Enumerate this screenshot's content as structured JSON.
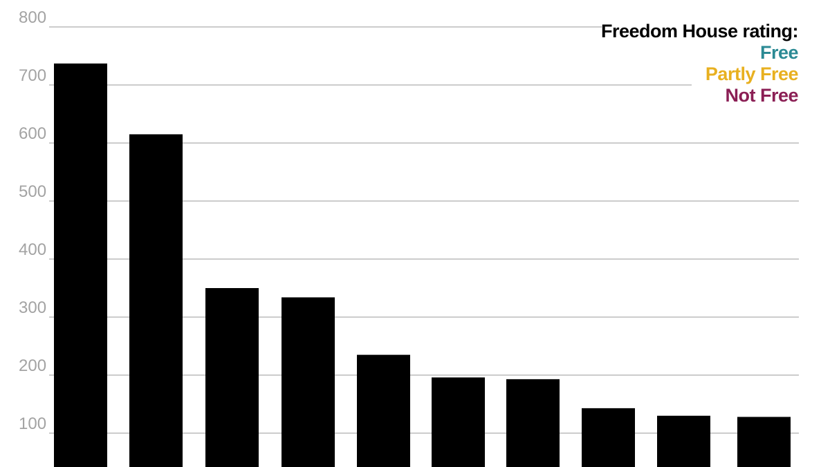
{
  "chart_data": {
    "type": "bar",
    "title": "",
    "xlabel": "",
    "ylabel": "",
    "ylim": [
      40,
      800
    ],
    "yticks": [
      100,
      200,
      300,
      400,
      500,
      600,
      700,
      800
    ],
    "grid": true,
    "categories": [
      "",
      "",
      "",
      "",
      "",
      "",
      "",
      "",
      "",
      ""
    ],
    "values": [
      737,
      615,
      350,
      334,
      235,
      196,
      193,
      143,
      130,
      128
    ],
    "bar_color": "#000000",
    "legend": {
      "title": "Freedom House rating:",
      "position": "top-right",
      "items": [
        {
          "label": "Free",
          "color": "#2b8a94"
        },
        {
          "label": "Partly Free",
          "color": "#e8b020"
        },
        {
          "label": "Not Free",
          "color": "#8b1f55"
        }
      ]
    }
  }
}
